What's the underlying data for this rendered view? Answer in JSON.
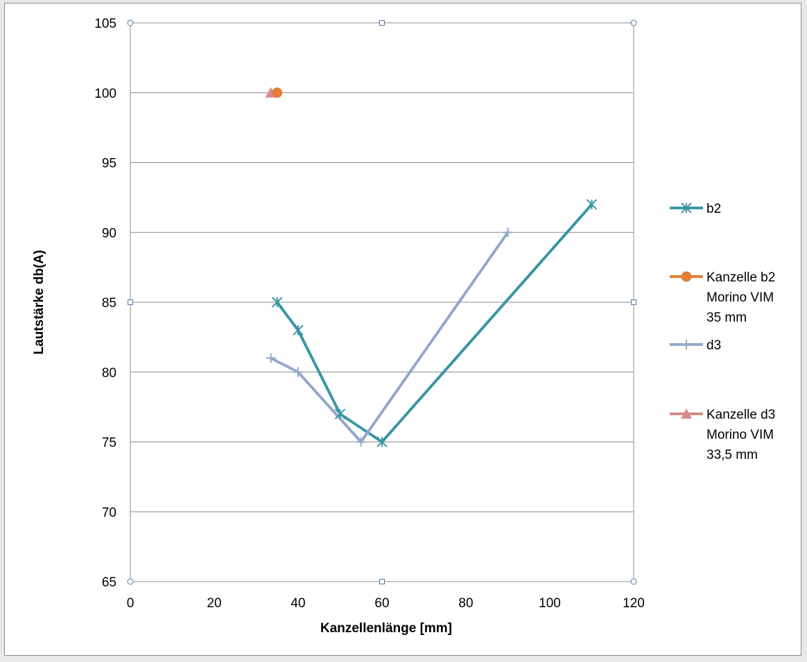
{
  "chart_data": {
    "type": "scatter",
    "xlabel": "Kanzellenlänge [mm]",
    "ylabel": "Lautstärke db(A)",
    "xlim": [
      0,
      120
    ],
    "ylim": [
      65,
      105
    ],
    "xticks": [
      "0",
      "20",
      "40",
      "60",
      "80",
      "100",
      "120"
    ],
    "yticks": [
      "65",
      "70",
      "75",
      "80",
      "85",
      "90",
      "95",
      "100",
      "105"
    ],
    "grid": "horizontal",
    "legend_position": "right",
    "series": [
      {
        "name": "b2",
        "color": "#3a96a4",
        "marker": "asterisk",
        "line": true,
        "points": [
          [
            35,
            85
          ],
          [
            40,
            83
          ],
          [
            50,
            77
          ],
          [
            60,
            75
          ],
          [
            110,
            92
          ]
        ]
      },
      {
        "name": "Kanzelle b2 Morino VIM 35 mm",
        "legend_lines": [
          "Kanzelle b2",
          "Morino VIM",
          "35 mm"
        ],
        "color": "#e07e36",
        "marker": "circle",
        "line": false,
        "points": [
          [
            35,
            100
          ]
        ]
      },
      {
        "name": "d3",
        "color": "#93a8cc",
        "marker": "plus",
        "line": true,
        "points": [
          [
            33.5,
            81
          ],
          [
            40,
            80
          ],
          [
            55,
            75
          ],
          [
            90,
            90
          ]
        ]
      },
      {
        "name": "Kanzelle d3 Morino VIM 33,5 mm",
        "legend_lines": [
          "Kanzelle d3",
          "Morino VIM",
          "33,5 mm"
        ],
        "color": "#d78c8a",
        "marker": "triangle",
        "line": false,
        "points": [
          [
            33.5,
            100
          ]
        ]
      }
    ]
  }
}
